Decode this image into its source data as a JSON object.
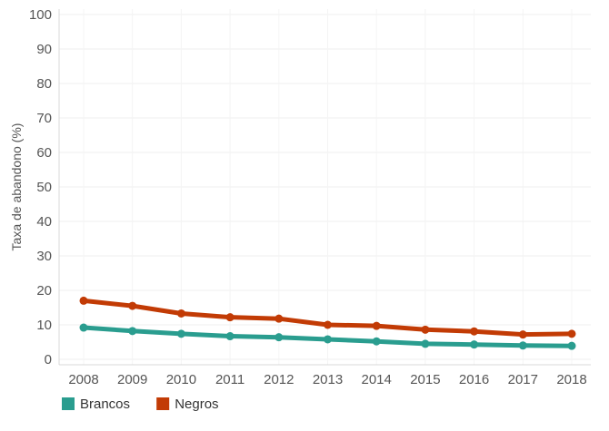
{
  "chart_data": {
    "type": "line",
    "categories": [
      "2008",
      "2009",
      "2010",
      "2011",
      "2012",
      "2013",
      "2014",
      "2015",
      "2016",
      "2017",
      "2018"
    ],
    "series": [
      {
        "name": "Brancos",
        "color": "#2a9d8f",
        "values": [
          9.2,
          8.2,
          7.4,
          6.7,
          6.4,
          5.8,
          5.2,
          4.5,
          4.3,
          4.0,
          3.9
        ]
      },
      {
        "name": "Negros",
        "color": "#c23b05",
        "values": [
          17.0,
          15.5,
          13.3,
          12.2,
          11.8,
          10.0,
          9.7,
          8.6,
          8.1,
          7.2,
          7.4
        ]
      }
    ],
    "y_ticks": [
      0,
      10,
      20,
      30,
      40,
      50,
      60,
      70,
      80,
      90,
      100
    ],
    "ylabel": "Taxa de abandono (%)",
    "ylim": [
      0,
      100
    ],
    "grid": true,
    "legend": "bottom-left"
  }
}
